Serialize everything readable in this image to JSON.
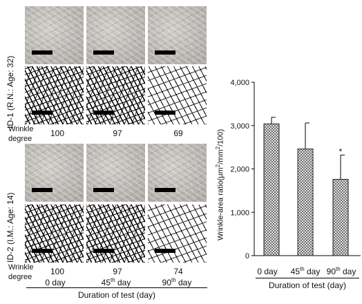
{
  "left_figure": {
    "id1_label": "ID-1 (R.N.: Age: 32)",
    "id2_label": "ID-2 (I.M.: Age: 14)",
    "wrinkle_label_line1": "Wrinkle",
    "wrinkle_label_line2": "degree",
    "id1_values": [
      "100",
      "97",
      "69"
    ],
    "id2_values": [
      "100",
      "97",
      "74"
    ],
    "days": [
      {
        "num": "0",
        "sup": "",
        "unit": " day"
      },
      {
        "num": "45",
        "sup": "th",
        "unit": " day"
      },
      {
        "num": "90",
        "sup": "th",
        "unit": " day"
      }
    ],
    "duration_label": "Duration  of  test (day)"
  },
  "chart_data": {
    "type": "bar",
    "ylabel": "Wrinkle-area ratio(μm²/mm²/100)",
    "xlabel": "Duration   of   test (day)",
    "categories": [
      "0 day",
      "45th day",
      "90th day"
    ],
    "values": [
      3040,
      2460,
      1760
    ],
    "errors": [
      150,
      600,
      560
    ],
    "annotations": [
      "",
      "",
      "*"
    ],
    "ylim": [
      0,
      4000
    ],
    "yticks": [
      "0",
      "1,000",
      "2,000",
      "3,000",
      "4,000"
    ],
    "tick_values": [
      0,
      1000,
      2000,
      3000,
      4000
    ],
    "grid": false,
    "bar_pattern": "crosshatch"
  }
}
